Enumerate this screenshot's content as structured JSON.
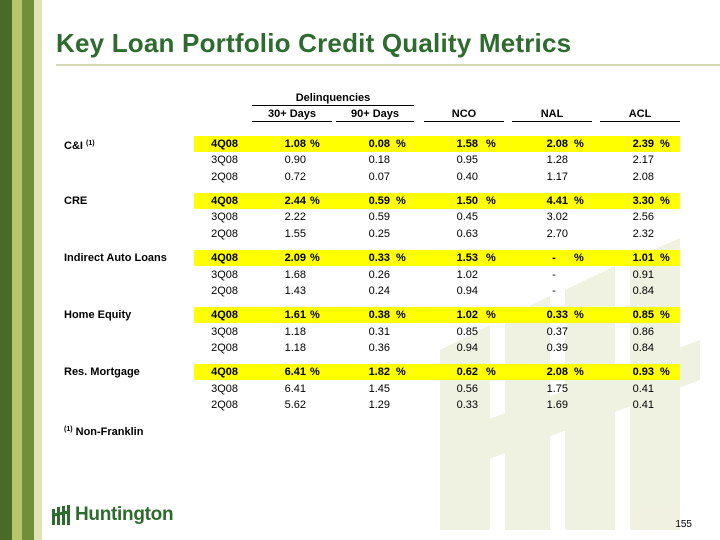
{
  "title": "Key Loan Portfolio Credit Quality Metrics",
  "header": {
    "group_label": "Delinquencies",
    "columns": [
      "30+ Days",
      "90+ Days",
      "NCO",
      "NAL",
      "ACL"
    ]
  },
  "colors": {
    "title": "#2e6b2e",
    "highlight": "#ffff00",
    "stripe_dark": "#4a6b28",
    "stripe_light": "#b7c46a"
  },
  "groups": [
    {
      "name": "C&I",
      "note": "(1)",
      "rows": [
        {
          "q": "4Q08",
          "v": [
            "1.08",
            "0.08",
            "1.58",
            "2.08",
            "2.39"
          ],
          "highlight": true
        },
        {
          "q": "3Q08",
          "v": [
            "0.90",
            "0.18",
            "0.95",
            "1.28",
            "2.17"
          ]
        },
        {
          "q": "2Q08",
          "v": [
            "0.72",
            "0.07",
            "0.40",
            "1.17",
            "2.08"
          ]
        }
      ]
    },
    {
      "name": "CRE",
      "note": "",
      "rows": [
        {
          "q": "4Q08",
          "v": [
            "2.44",
            "0.59",
            "1.50",
            "4.41",
            "3.30"
          ],
          "highlight": true
        },
        {
          "q": "3Q08",
          "v": [
            "2.22",
            "0.59",
            "0.45",
            "3.02",
            "2.56"
          ]
        },
        {
          "q": "2Q08",
          "v": [
            "1.55",
            "0.25",
            "0.63",
            "2.70",
            "2.32"
          ]
        }
      ]
    },
    {
      "name": "Indirect Auto Loans",
      "note": "",
      "rows": [
        {
          "q": "4Q08",
          "v": [
            "2.09",
            "0.33",
            "1.53",
            "-",
            "1.01"
          ],
          "highlight": true
        },
        {
          "q": "3Q08",
          "v": [
            "1.68",
            "0.26",
            "1.02",
            "-",
            "0.91"
          ]
        },
        {
          "q": "2Q08",
          "v": [
            "1.43",
            "0.24",
            "0.94",
            "-",
            "0.84"
          ]
        }
      ]
    },
    {
      "name": "Home Equity",
      "note": "",
      "rows": [
        {
          "q": "4Q08",
          "v": [
            "1.61",
            "0.38",
            "1.02",
            "0.33",
            "0.85"
          ],
          "highlight": true
        },
        {
          "q": "3Q08",
          "v": [
            "1.18",
            "0.31",
            "0.85",
            "0.37",
            "0.86"
          ]
        },
        {
          "q": "2Q08",
          "v": [
            "1.18",
            "0.36",
            "0.94",
            "0.39",
            "0.84"
          ]
        }
      ]
    },
    {
      "name": "Res. Mortgage",
      "note": "",
      "rows": [
        {
          "q": "4Q08",
          "v": [
            "6.41",
            "1.82",
            "0.62",
            "2.08",
            "0.93"
          ],
          "highlight": true
        },
        {
          "q": "3Q08",
          "v": [
            "6.41",
            "1.45",
            "0.56",
            "1.75",
            "0.41"
          ]
        },
        {
          "q": "2Q08",
          "v": [
            "5.62",
            "1.29",
            "0.33",
            "1.69",
            "0.41"
          ]
        }
      ]
    }
  ],
  "percent_sign": "%",
  "footnote": {
    "mark": "(1)",
    "text": "Non-Franklin"
  },
  "logo_text": "Huntington",
  "page_number": "155"
}
